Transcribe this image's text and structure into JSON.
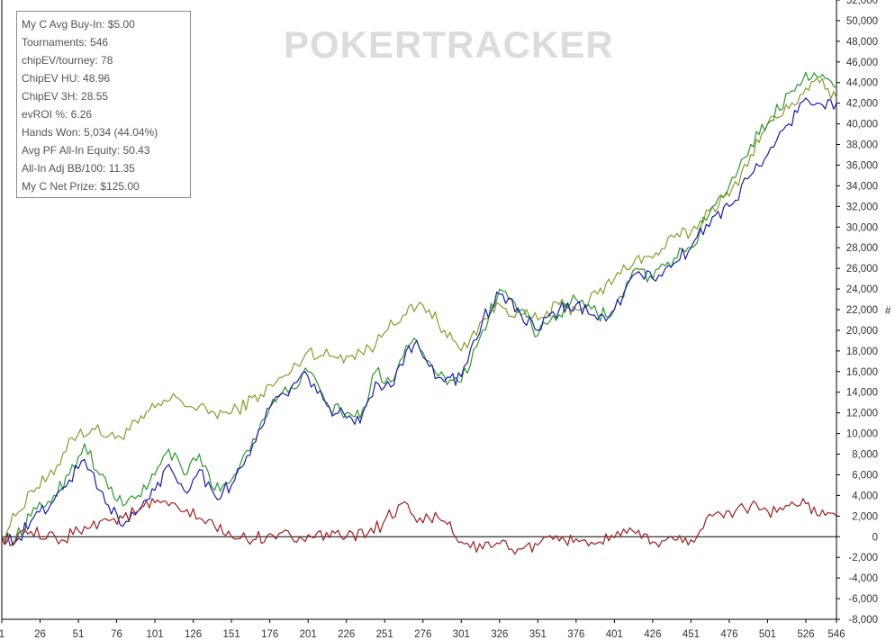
{
  "watermark": {
    "text": "POKERTRACKER"
  },
  "stats": [
    "My C Avg Buy-In: $5.00",
    "Tournaments: 546",
    "chipEV/tourney: 78",
    "ChipEV HU: 48.96",
    "ChipEV 3H: 28.55",
    "evROI %: 6.26",
    "Hands Won: 5,034 (44.04%)",
    "Avg PF All-In Equity: 50.43",
    "All-In Adj BB/100: 11.35",
    "My C Net Prize: $125.00"
  ],
  "chart_data": {
    "type": "line",
    "title": "",
    "xlabel": "",
    "ylabel": "#",
    "xlim": [
      1,
      546
    ],
    "ylim": [
      -8000,
      52000
    ],
    "x_ticks": [
      1,
      26,
      51,
      76,
      101,
      126,
      151,
      176,
      201,
      226,
      251,
      276,
      301,
      326,
      351,
      376,
      401,
      426,
      451,
      476,
      501,
      526,
      546
    ],
    "y_ticks": [
      -8000,
      -6000,
      -4000,
      -2000,
      0,
      2000,
      4000,
      6000,
      8000,
      10000,
      12000,
      14000,
      16000,
      18000,
      20000,
      22000,
      24000,
      26000,
      28000,
      30000,
      32000,
      34000,
      36000,
      38000,
      40000,
      42000,
      44000,
      46000,
      48000,
      50000,
      52000
    ],
    "y_tick_labels": [
      "-8,000",
      "-6,000",
      "-4,000",
      "-2,000",
      "0",
      "2,000",
      "4,000",
      "6,000",
      "8,000",
      "10,000",
      "12,000",
      "14,000",
      "16,000",
      "18,000",
      "20,000",
      "22,000",
      "24,000",
      "26,000",
      "28,000",
      "30,000",
      "32,000",
      "34,000",
      "36,000",
      "38,000",
      "40,000",
      "42,000",
      "44,000",
      "46,000",
      "48,000",
      "50,000",
      "52,000"
    ],
    "grid": false,
    "zero_line": true,
    "legend": "none",
    "series": [
      {
        "color": "#8c9a28",
        "x": [
          1,
          10,
          20,
          35,
          45,
          60,
          75,
          90,
          101,
          115,
          126,
          140,
          151,
          170,
          190,
          201,
          215,
          226,
          245,
          255,
          265,
          272,
          280,
          290,
          301,
          315,
          326,
          340,
          351,
          365,
          376,
          390,
          401,
          415,
          426,
          440,
          451,
          465,
          476,
          490,
          501,
          515,
          526,
          535,
          546
        ],
        "y": [
          0,
          2000,
          4500,
          6000,
          9500,
          10500,
          9500,
          11000,
          12500,
          13500,
          12500,
          12000,
          12000,
          13800,
          16000,
          18000,
          17500,
          17500,
          18500,
          21000,
          21500,
          22300,
          22000,
          20000,
          18000,
          21000,
          22500,
          21500,
          21000,
          22500,
          22000,
          23500,
          25000,
          27000,
          27000,
          29000,
          29500,
          32000,
          33000,
          37000,
          40000,
          41500,
          43500,
          44000,
          42500
        ]
      },
      {
        "color": "#2a9a2a",
        "x": [
          1,
          10,
          20,
          35,
          45,
          55,
          65,
          80,
          90,
          101,
          110,
          120,
          130,
          140,
          151,
          165,
          176,
          190,
          201,
          215,
          226,
          235,
          245,
          255,
          265,
          272,
          280,
          290,
          301,
          315,
          326,
          340,
          351,
          365,
          376,
          390,
          401,
          415,
          426,
          440,
          451,
          465,
          476,
          490,
          501,
          515,
          526,
          535,
          546
        ],
        "y": [
          0,
          -200,
          2000,
          4000,
          6000,
          9000,
          6000,
          3000,
          4000,
          6000,
          8500,
          6000,
          8000,
          4500,
          5500,
          9500,
          12500,
          14500,
          16000,
          12500,
          12000,
          11500,
          16000,
          15000,
          18500,
          19000,
          17000,
          15500,
          15000,
          20000,
          24000,
          22000,
          19500,
          21500,
          23000,
          21500,
          22000,
          26000,
          25000,
          27000,
          28000,
          32000,
          34000,
          38000,
          40000,
          43000,
          45000,
          44500,
          43500
        ]
      },
      {
        "color": "#1a1ab4",
        "x": [
          1,
          10,
          20,
          35,
          45,
          55,
          65,
          80,
          90,
          101,
          110,
          120,
          130,
          140,
          151,
          165,
          176,
          190,
          201,
          215,
          226,
          235,
          245,
          255,
          265,
          272,
          280,
          290,
          301,
          315,
          326,
          340,
          351,
          365,
          376,
          390,
          401,
          415,
          426,
          440,
          451,
          465,
          476,
          490,
          501,
          515,
          526,
          535,
          546
        ],
        "y": [
          0,
          -500,
          1500,
          3500,
          5500,
          7500,
          4500,
          1000,
          2500,
          4500,
          7000,
          4500,
          6500,
          4000,
          5000,
          9000,
          12500,
          14500,
          15500,
          12500,
          11500,
          11000,
          15000,
          14500,
          18000,
          19000,
          16500,
          15000,
          15500,
          21000,
          23500,
          21500,
          20000,
          22000,
          22500,
          21000,
          22000,
          25500,
          25000,
          26500,
          28000,
          31000,
          32000,
          35000,
          37000,
          40000,
          42500,
          42000,
          42000
        ]
      },
      {
        "color": "#a01e1e",
        "x": [
          1,
          10,
          20,
          30,
          40,
          55,
          65,
          80,
          90,
          101,
          110,
          120,
          130,
          140,
          151,
          165,
          176,
          190,
          201,
          215,
          226,
          240,
          250,
          262,
          270,
          280,
          290,
          301,
          315,
          326,
          340,
          351,
          365,
          376,
          390,
          401,
          415,
          426,
          440,
          451,
          465,
          476,
          490,
          501,
          515,
          526,
          535,
          546
        ],
        "y": [
          0,
          -500,
          500,
          -200,
          -300,
          1000,
          1500,
          1800,
          2500,
          3300,
          3000,
          2400,
          1800,
          1000,
          0,
          -300,
          300,
          0,
          200,
          -100,
          0,
          300,
          1300,
          3200,
          2000,
          1800,
          1500,
          -500,
          -1200,
          -700,
          -1200,
          -800,
          -400,
          -200,
          -600,
          -100,
          300,
          -500,
          -300,
          -300,
          2000,
          2500,
          3000,
          2500,
          3000,
          3200,
          2000,
          2000
        ]
      }
    ]
  }
}
